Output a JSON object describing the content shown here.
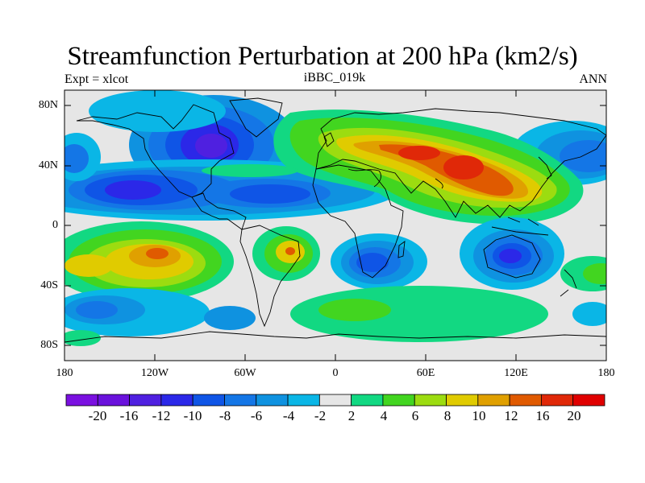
{
  "plot": {
    "title": "Streamfunction Perturbation at 200 hPa (km2/s)",
    "left_label": "Expt = xlcot",
    "center_label": "iBBC_019k",
    "right_label": "ANN"
  },
  "axes": {
    "lat_ticks": [
      "80N",
      "40N",
      "0",
      "40S",
      "80S"
    ],
    "lon_ticks": [
      "180",
      "120W",
      "60W",
      "0",
      "60E",
      "120E",
      "180"
    ]
  },
  "colorbar": {
    "labels": [
      "-20",
      "-16",
      "-12",
      "-10",
      "-8",
      "-6",
      "-4",
      "-2",
      "2",
      "4",
      "6",
      "8",
      "10",
      "12",
      "16",
      "20"
    ],
    "colors": [
      "#7a10e0",
      "#6a12dc",
      "#4f20e0",
      "#2b28e8",
      "#0f55e6",
      "#1476e6",
      "#0f92e0",
      "#0ab6e6",
      "#e6e6e6",
      "#12d882",
      "#42d520",
      "#9cdc10",
      "#e0cb00",
      "#e0a000",
      "#e05a00",
      "#e02808",
      "#e00000"
    ],
    "background": "#e6e6e6"
  }
}
